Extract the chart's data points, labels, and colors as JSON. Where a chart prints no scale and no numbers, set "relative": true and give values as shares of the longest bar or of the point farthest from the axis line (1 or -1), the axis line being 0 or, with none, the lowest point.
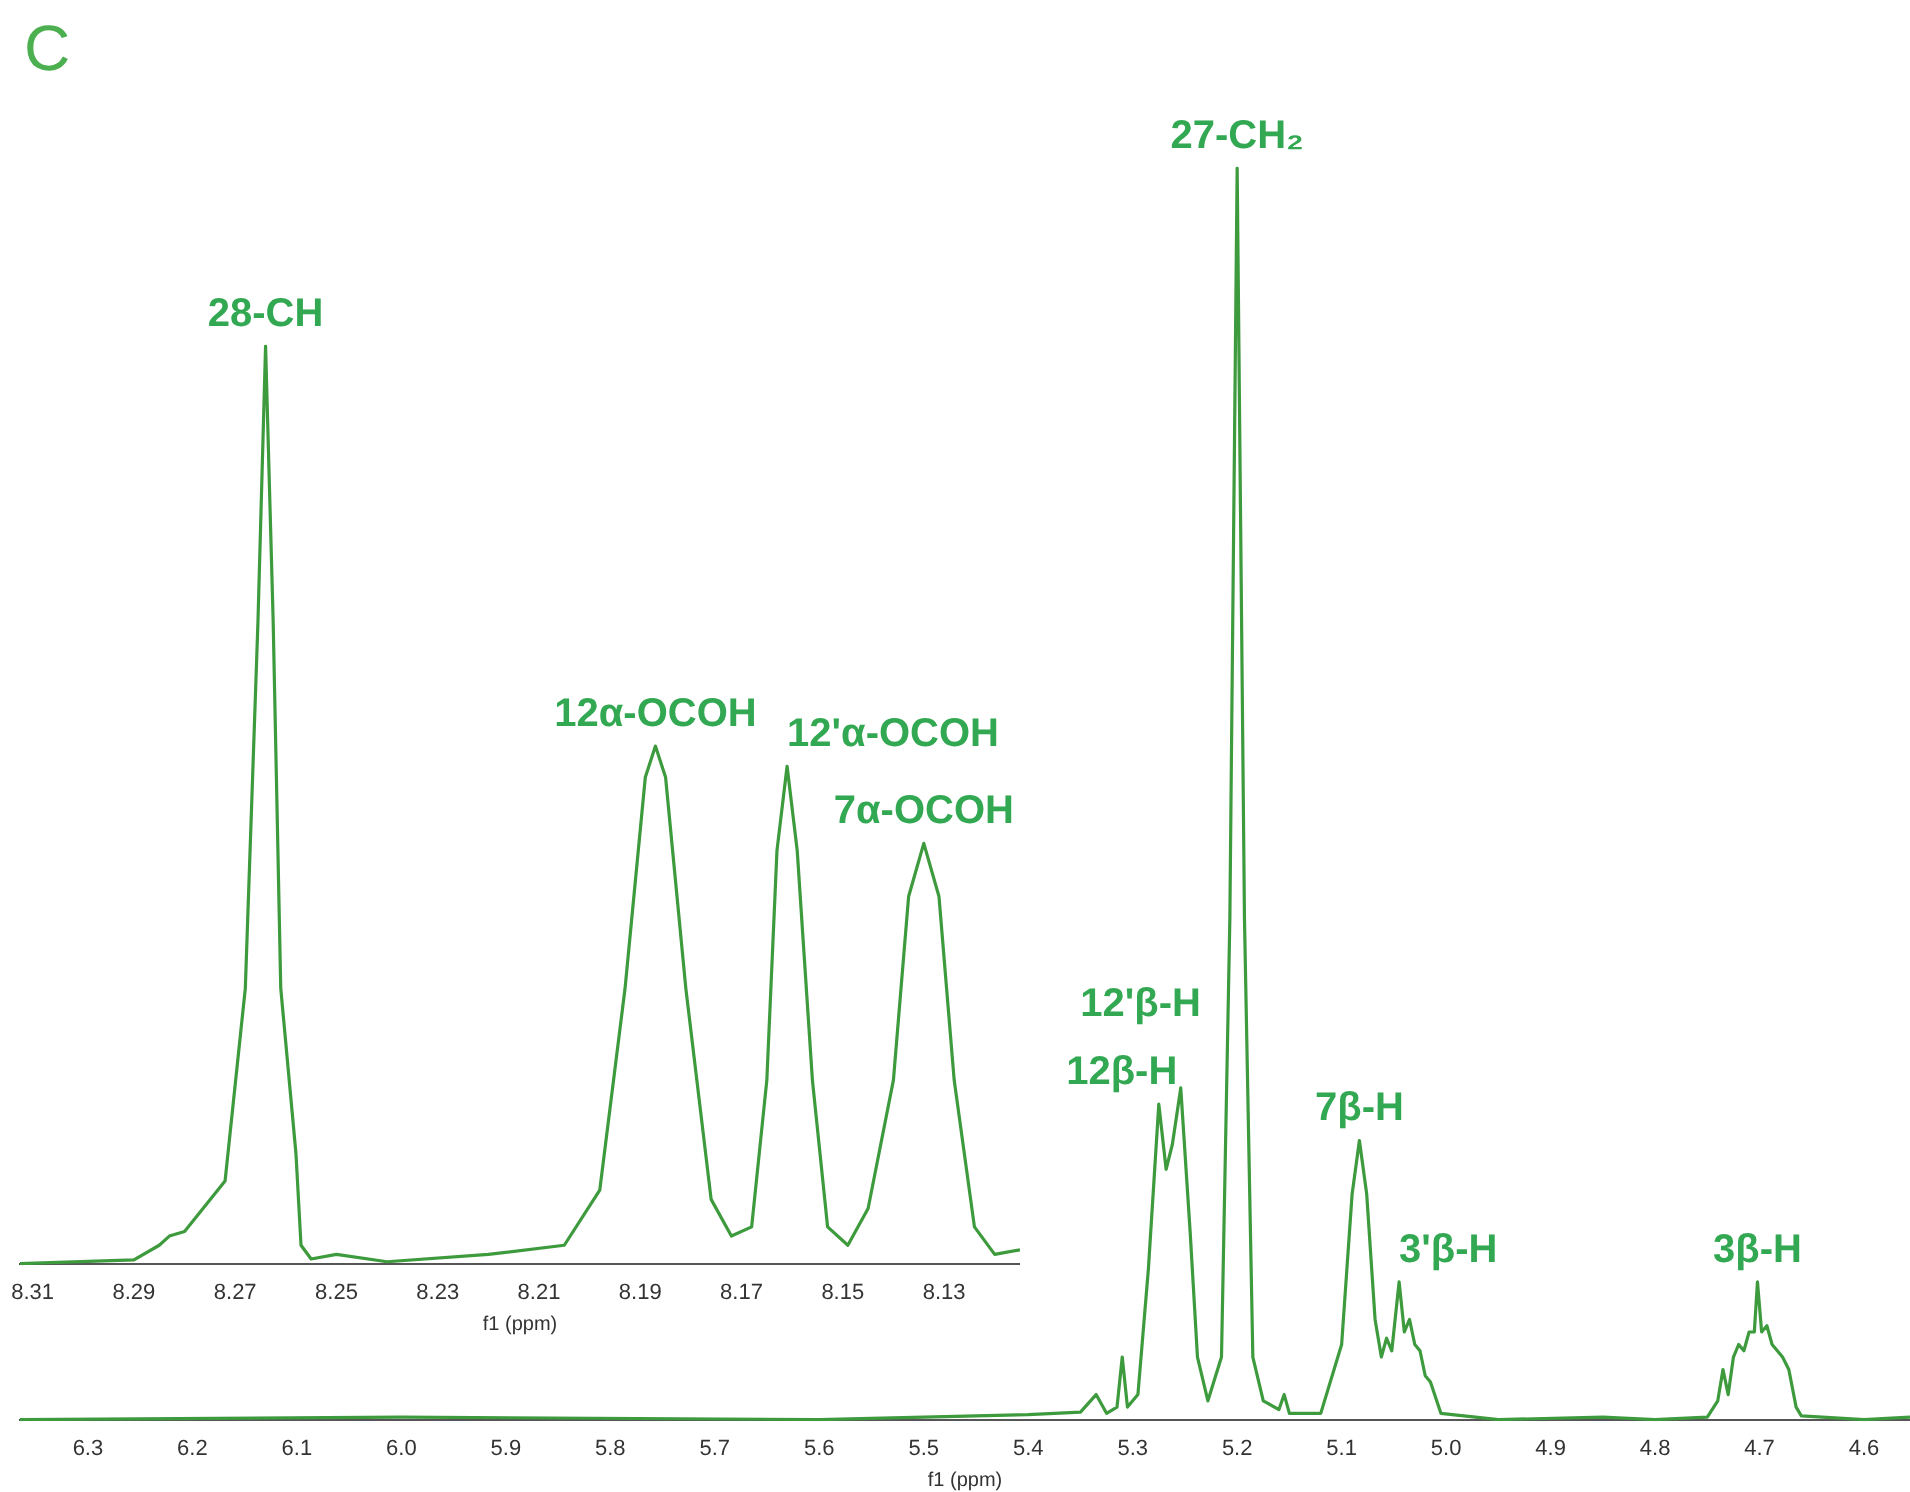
{
  "chart_data": [
    {
      "type": "line",
      "title": "C",
      "xlabel": "f1 (ppm)",
      "relative": true,
      "tick_labels": "x",
      "xlim": [
        6.365,
        4.556
      ],
      "xticks": [
        6.3,
        6.2,
        6.1,
        {
          "value": 6,
          "label": "6.0"
        },
        5.9,
        5.8,
        5.7,
        5.6,
        5.5,
        5.4,
        5.3,
        5.2,
        5.1,
        {
          "value": 5,
          "label": "5.0"
        },
        4.9,
        4.8,
        4.7,
        4.6
      ],
      "series": [
        {
          "color": "#3d9a3d",
          "x": [
            6.365,
            6.0,
            5.6,
            5.45,
            5.4,
            5.35,
            5.335,
            5.325,
            5.315,
            5.31,
            5.305,
            5.295,
            5.285,
            5.275,
            5.268,
            5.262,
            5.254,
            5.245,
            5.238,
            5.228,
            5.215,
            5.207,
            5.2,
            5.193,
            5.185,
            5.175,
            5.16,
            5.155,
            5.15,
            5.12,
            5.1,
            5.09,
            5.083,
            5.076,
            5.068,
            5.062,
            5.057,
            5.052,
            5.045,
            5.04,
            5.035,
            5.03,
            5.025,
            5.02,
            5.015,
            5.005,
            4.95,
            4.85,
            4.8,
            4.75,
            4.74,
            4.735,
            4.73,
            4.725,
            4.72,
            4.715,
            4.71,
            4.705,
            4.702,
            4.698,
            4.693,
            4.688,
            4.683,
            4.678,
            4.672,
            4.665,
            4.66,
            4.6,
            4.556
          ],
          "values": [
            0,
            0.002,
            0,
            0.003,
            0.004,
            0.006,
            0.02,
            0.005,
            0.01,
            0.05,
            0.01,
            0.02,
            0.12,
            0.252,
            0.2,
            0.22,
            0.265,
            0.15,
            0.05,
            0.015,
            0.05,
            0.4,
            1,
            0.4,
            0.05,
            0.015,
            0.008,
            0.02,
            0.005,
            0.005,
            0.06,
            0.18,
            0.223,
            0.18,
            0.08,
            0.05,
            0.065,
            0.055,
            0.11,
            0.07,
            0.08,
            0.06,
            0.055,
            0.035,
            0.03,
            0.005,
            0,
            0.002,
            0,
            0.002,
            0.015,
            0.04,
            0.02,
            0.05,
            0.06,
            0.055,
            0.07,
            0.07,
            0.11,
            0.07,
            0.075,
            0.06,
            0.055,
            0.05,
            0.04,
            0.01,
            0.003,
            0,
            0.002
          ]
        }
      ],
      "annotations": [
        {
          "text": "27-CH₂",
          "x": 5.2,
          "y": 1
        },
        {
          "text": "12β-H",
          "x": 5.275,
          "y": 0.252
        },
        {
          "text": "12'β-H",
          "x": 5.254,
          "y": 0.265
        },
        {
          "text": "7β-H",
          "x": 5.083,
          "y": 0.223
        },
        {
          "text": "3'β-H",
          "x": 5.045,
          "y": 0.11
        },
        {
          "text": "3β-H",
          "x": 4.702,
          "y": 0.11
        }
      ]
    },
    {
      "type": "line",
      "xlabel": "f1 (ppm)",
      "relative": true,
      "tick_labels": "x",
      "xlim": [
        8.3125,
        8.115
      ],
      "xticks": [
        8.31,
        8.29,
        8.27,
        8.25,
        8.23,
        8.21,
        8.19,
        8.17,
        8.15,
        8.13
      ],
      "series": [
        {
          "color": "#3d9a3d",
          "x": [
            8.3125,
            8.29,
            8.285,
            8.283,
            8.28,
            8.272,
            8.268,
            8.2655,
            8.264,
            8.2625,
            8.261,
            8.258,
            8.257,
            8.255,
            8.25,
            8.24,
            8.22,
            8.205,
            8.198,
            8.193,
            8.189,
            8.187,
            8.185,
            8.181,
            8.176,
            8.172,
            8.168,
            8.165,
            8.163,
            8.161,
            8.159,
            8.156,
            8.153,
            8.149,
            8.145,
            8.14,
            8.137,
            8.134,
            8.131,
            8.128,
            8.124,
            8.12,
            8.115
          ],
          "values": [
            0,
            0.004,
            0.02,
            0.03,
            0.035,
            0.09,
            0.3,
            0.7,
            1,
            0.7,
            0.3,
            0.12,
            0.02,
            0.005,
            0.01,
            0.002,
            0.01,
            0.02,
            0.08,
            0.3,
            0.53,
            0.564,
            0.53,
            0.3,
            0.07,
            0.03,
            0.04,
            0.2,
            0.45,
            0.542,
            0.45,
            0.2,
            0.04,
            0.02,
            0.06,
            0.2,
            0.4,
            0.458,
            0.4,
            0.2,
            0.04,
            0.01,
            0.015
          ]
        }
      ],
      "annotations": [
        {
          "text": "28-CH",
          "x": 8.264,
          "y": 1
        },
        {
          "text": "12α-OCOH",
          "x": 8.187,
          "y": 0.564
        },
        {
          "text": "12'α-OCOH",
          "x": 8.161,
          "y": 0.542
        },
        {
          "text": "7α-OCOH",
          "x": 8.134,
          "y": 0.458
        }
      ]
    }
  ]
}
